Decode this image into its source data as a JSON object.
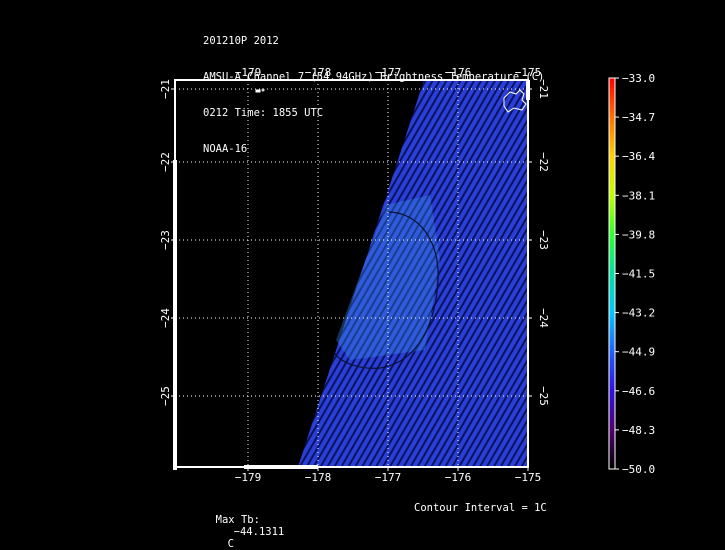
{
  "header": {
    "line1": "201210P 2012",
    "line2": "AMSU-A Channel 7 (54.94GHz) Brightness Temperature (C)",
    "line3": "0212 Time: 1855 UTC",
    "line4": "NOAA-16"
  },
  "map": {
    "lon_ticks": [
      "−179",
      "−178",
      "−177",
      "−176",
      "−175"
    ],
    "lat_ticks": [
      "−21",
      "−22",
      "−23",
      "−24",
      "−25"
    ],
    "lon_range": [
      -180,
      -175
    ],
    "lat_range": [
      -21,
      -26
    ],
    "swath_color": "#2a3fd6",
    "swath_stripe_color": "#0a1260",
    "grid": "dotted"
  },
  "colorbar": {
    "labels": [
      "−33.0",
      "−34.7",
      "−36.4",
      "−38.1",
      "−39.8",
      "−41.5",
      "−43.2",
      "−44.9",
      "−46.6",
      "−48.3",
      "−50.0"
    ],
    "colors": [
      "#ff0000",
      "#ff7000",
      "#ffd000",
      "#c0ff00",
      "#30ff30",
      "#00e0a0",
      "#00c8ff",
      "#2060ff",
      "#3010e0",
      "#500070",
      "#000000"
    ]
  },
  "footer": {
    "max_tb_label": "Max Tb:",
    "max_tb_value": "−44.1311",
    "max_tb_unit": "C",
    "contour_text": "Contour Interval = 1C"
  }
}
